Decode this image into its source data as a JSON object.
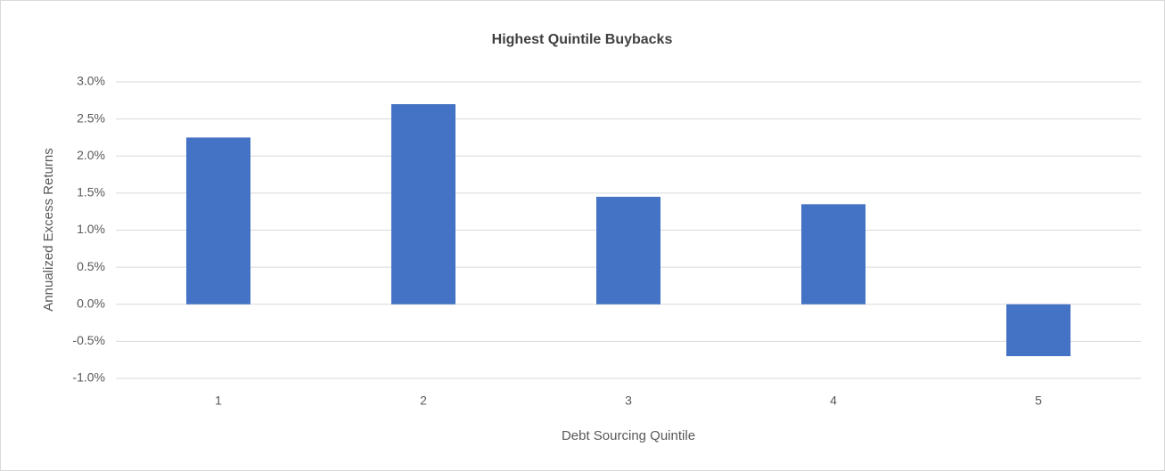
{
  "chart_data": {
    "type": "bar",
    "title": "Highest Quintile Buybacks",
    "x_label": "Debt Sourcing Quintile",
    "y_label": "Annualized Excess Returns",
    "categories": [
      "1",
      "2",
      "3",
      "4",
      "5"
    ],
    "values": [
      2.25,
      2.7,
      1.45,
      1.35,
      -0.7
    ],
    "color": "#4472c4",
    "ylim": [
      -1,
      3
    ],
    "yticks": [
      {
        "value": -1,
        "label": "-1.0%"
      },
      {
        "value": -0.5,
        "label": "-0.5%"
      },
      {
        "value": 0,
        "label": "0.0%"
      },
      {
        "value": 0.5,
        "label": "0.5%"
      },
      {
        "value": 1,
        "label": "1.0%"
      },
      {
        "value": 1.5,
        "label": "1.5%"
      },
      {
        "value": 2,
        "label": "2.0%"
      },
      {
        "value": 2.5,
        "label": "2.5%"
      },
      {
        "value": 3,
        "label": "3.0%"
      }
    ],
    "grid": true
  }
}
